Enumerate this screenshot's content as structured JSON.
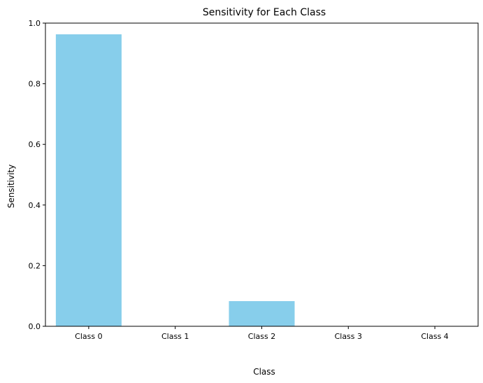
{
  "chart_data": {
    "type": "bar",
    "title": "Sensitivity for Each Class",
    "xlabel": "Class",
    "ylabel": "Sensitivity",
    "categories": [
      "Class 0",
      "Class 1",
      "Class 2",
      "Class 3",
      "Class 4"
    ],
    "values": [
      0.963,
      0.0,
      0.083,
      0.0,
      0.0
    ],
    "ylim": [
      0,
      1.0
    ],
    "yticks": [
      0.0,
      0.2,
      0.4,
      0.6,
      0.8,
      1.0
    ],
    "ytick_labels": [
      "0.0",
      "0.2",
      "0.4",
      "0.6",
      "0.8",
      "1.0"
    ],
    "bar_color": "#87ceeb",
    "grid": false,
    "legend": "none"
  }
}
